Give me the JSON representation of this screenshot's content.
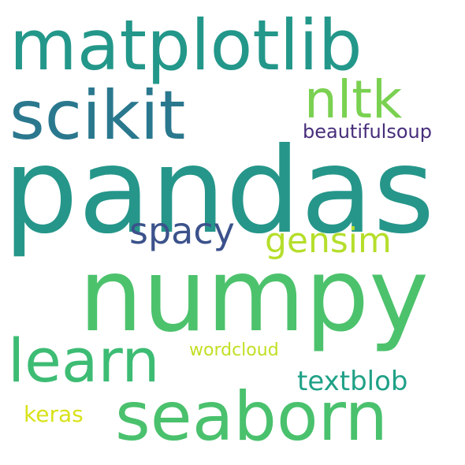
{
  "words": [
    {
      "id": "pandas",
      "text": "pandas",
      "color": "#26968a"
    },
    {
      "id": "numpy",
      "text": "numpy",
      "color": "#4cc26c"
    },
    {
      "id": "matplotlib",
      "text": "matplotlib",
      "color": "#23978a"
    },
    {
      "id": "scikit",
      "text": "scikit",
      "color": "#2a788e"
    },
    {
      "id": "seaborn",
      "text": "seaborn",
      "color": "#4ac16d"
    },
    {
      "id": "learn",
      "text": "learn",
      "color": "#3dbc74"
    },
    {
      "id": "nltk",
      "text": "nltk",
      "color": "#7ad151"
    },
    {
      "id": "spacy",
      "text": "spacy",
      "color": "#3b528b"
    },
    {
      "id": "gensim",
      "text": "gensim",
      "color": "#b5de2b"
    },
    {
      "id": "textblob",
      "text": "textblob",
      "color": "#1fa187"
    },
    {
      "id": "keras",
      "text": "keras",
      "color": "#d8e219"
    },
    {
      "id": "beautifulsoup",
      "text": "beautifulsoup",
      "color": "#472d7b"
    },
    {
      "id": "wordcloud",
      "text": "wordcloud",
      "color": "#c2df23"
    }
  ]
}
